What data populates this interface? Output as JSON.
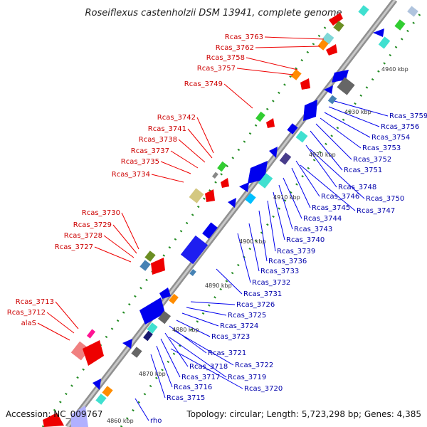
{
  "title": "Roseiflexus castenholzii DSM 13941, complete genome",
  "footer": {
    "accession": "Accession: NC_009767",
    "summary": "Topology: circular; Length: 5,723,298 bp; Genes: 4,385"
  },
  "scale_labels": [
    "4860 kbp",
    "4870 kbp",
    "4880 kbp",
    "4890 kbp",
    "4900 kbp",
    "4910 kbp",
    "4920 kbp",
    "4930 kbp",
    "4940 kbp"
  ],
  "forward_genes": [
    "Rcas_3763",
    "Rcas_3762",
    "Rcas_3758",
    "Rcas_3757",
    "Rcas_3749",
    "Rcas_3742",
    "Rcas_3741",
    "Rcas_3738",
    "Rcas_3737",
    "Rcas_3735",
    "Rcas_3734",
    "Rcas_3730",
    "Rcas_3729",
    "Rcas_3728",
    "Rcas_3727",
    "Rcas_3713",
    "Rcas_3712",
    "alaS"
  ],
  "reverse_genes": [
    "Rcas_3759",
    "Rcas_3756",
    "Rcas_3754",
    "Rcas_3753",
    "Rcas_3752",
    "Rcas_3751",
    "Rcas_3748",
    "Rcas_3750",
    "Rcas_3746",
    "Rcas_3747",
    "Rcas_3745",
    "Rcas_3744",
    "Rcas_3743",
    "Rcas_3740",
    "Rcas_3739",
    "Rcas_3736",
    "Rcas_3733",
    "Rcas_3732",
    "Rcas_3731",
    "Rcas_3726",
    "Rcas_3725",
    "Rcas_3724",
    "Rcas_3723",
    "Rcas_3721",
    "Rcas_3722",
    "Rcas_3718",
    "Rcas_3719",
    "Rcas_3717",
    "Rcas_3716",
    "Rcas_3720",
    "Rcas_3715",
    "rho"
  ],
  "colors": {
    "forward": "#ee0000",
    "reverse": "#0000ee",
    "backbone": "#a0a0a0",
    "gc_dots": "#228b22",
    "label_forward": "#cc0000",
    "label_reverse": "#0000aa"
  }
}
